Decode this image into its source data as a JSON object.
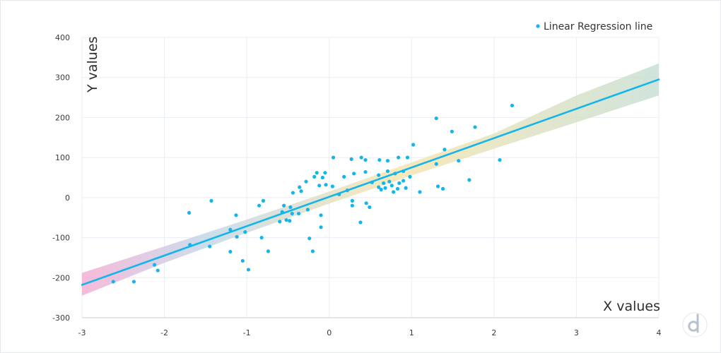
{
  "chart_data": {
    "type": "scatter",
    "title": "",
    "xlabel": "X  values",
    "ylabel": "Y  values",
    "xlim": [
      -3,
      4
    ],
    "ylim": [
      -300,
      400
    ],
    "x_ticks": [
      -3,
      -2,
      -1,
      0,
      1,
      2,
      3,
      4
    ],
    "y_ticks": [
      -300,
      -200,
      -100,
      0,
      100,
      200,
      300,
      400
    ],
    "grid": true,
    "legend_position": "top-right",
    "colors": {
      "points": "#13b5ea",
      "line": "#13b5ea",
      "band_start": "#f4a6cf",
      "band_mid": "#bcd4e6",
      "band_middle": "#f6e2a6",
      "band_end": "#c2dcd0",
      "grid": "#e8eef4",
      "axis": "#c9ced6"
    },
    "regression_line": {
      "name": "Linear Regression line",
      "start": [
        -3,
        -218
      ],
      "end": [
        4,
        295
      ]
    },
    "confidence_band": {
      "x": [
        -3,
        -2,
        -1,
        0,
        1,
        2,
        3,
        4
      ],
      "lower": [
        -245,
        -163,
        -88,
        -15,
        55,
        122,
        188,
        255
      ],
      "upper": [
        -188,
        -122,
        -55,
        15,
        88,
        160,
        255,
        335
      ]
    },
    "series": [
      {
        "points": [
          [
            -2.62,
            -210
          ],
          [
            -2.37,
            -210
          ],
          [
            -2.12,
            -168
          ],
          [
            -2.08,
            -182
          ],
          [
            -1.7,
            -38
          ],
          [
            -1.69,
            -118
          ],
          [
            -1.43,
            -8
          ],
          [
            -1.45,
            -122
          ],
          [
            -1.2,
            -80
          ],
          [
            -1.2,
            -135
          ],
          [
            -1.13,
            -44
          ],
          [
            -1.12,
            -98
          ],
          [
            -1.05,
            -158
          ],
          [
            -1.02,
            -86
          ],
          [
            -0.98,
            -180
          ],
          [
            -0.85,
            -20
          ],
          [
            -0.82,
            -100
          ],
          [
            -0.8,
            -8
          ],
          [
            -0.74,
            -134
          ],
          [
            -0.6,
            -60
          ],
          [
            -0.57,
            -36
          ],
          [
            -0.55,
            -20
          ],
          [
            -0.52,
            -56
          ],
          [
            -0.48,
            -58
          ],
          [
            -0.47,
            -24
          ],
          [
            -0.45,
            -40
          ],
          [
            -0.44,
            12
          ],
          [
            -0.37,
            -40
          ],
          [
            -0.36,
            26
          ],
          [
            -0.34,
            16
          ],
          [
            -0.28,
            40
          ],
          [
            -0.26,
            -30
          ],
          [
            -0.24,
            -102
          ],
          [
            -0.2,
            -134
          ],
          [
            -0.18,
            52
          ],
          [
            -0.15,
            62
          ],
          [
            -0.12,
            30
          ],
          [
            -0.1,
            -44
          ],
          [
            -0.1,
            -74
          ],
          [
            -0.08,
            50
          ],
          [
            -0.05,
            62
          ],
          [
            -0.04,
            32
          ],
          [
            0.04,
            28
          ],
          [
            0.05,
            100
          ],
          [
            0.12,
            8
          ],
          [
            0.18,
            52
          ],
          [
            0.22,
            18
          ],
          [
            0.27,
            96
          ],
          [
            0.28,
            -20
          ],
          [
            0.28,
            -8
          ],
          [
            0.3,
            60
          ],
          [
            0.38,
            -62
          ],
          [
            0.39,
            100
          ],
          [
            0.44,
            94
          ],
          [
            0.44,
            64
          ],
          [
            0.45,
            -14
          ],
          [
            0.49,
            -24
          ],
          [
            0.52,
            38
          ],
          [
            0.6,
            56
          ],
          [
            0.6,
            26
          ],
          [
            0.61,
            94
          ],
          [
            0.63,
            20
          ],
          [
            0.66,
            36
          ],
          [
            0.68,
            24
          ],
          [
            0.71,
            66
          ],
          [
            0.71,
            92
          ],
          [
            0.73,
            40
          ],
          [
            0.76,
            30
          ],
          [
            0.78,
            14
          ],
          [
            0.8,
            60
          ],
          [
            0.83,
            22
          ],
          [
            0.84,
            100
          ],
          [
            0.85,
            36
          ],
          [
            0.9,
            42
          ],
          [
            0.9,
            66
          ],
          [
            0.93,
            24
          ],
          [
            0.95,
            100
          ],
          [
            0.98,
            52
          ],
          [
            1.02,
            132
          ],
          [
            1.1,
            14
          ],
          [
            1.3,
            198
          ],
          [
            1.3,
            84
          ],
          [
            1.32,
            28
          ],
          [
            1.38,
            22
          ],
          [
            1.4,
            120
          ],
          [
            1.49,
            165
          ],
          [
            1.57,
            92
          ],
          [
            1.7,
            44
          ],
          [
            1.77,
            176
          ],
          [
            2.07,
            94
          ],
          [
            2.22,
            230
          ]
        ]
      }
    ]
  }
}
